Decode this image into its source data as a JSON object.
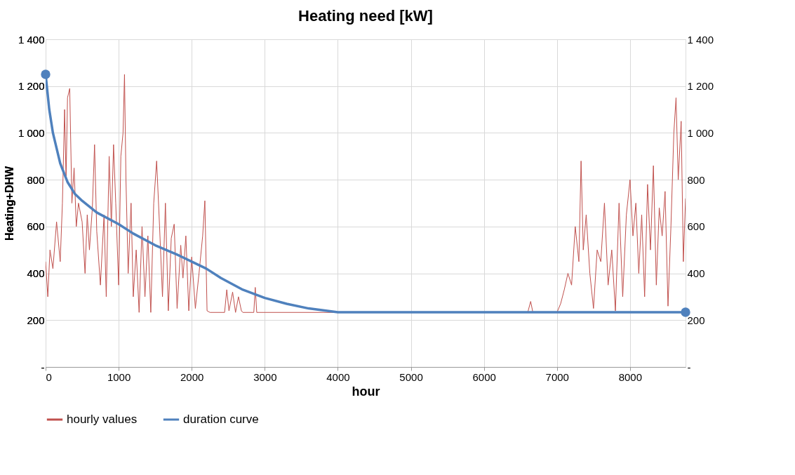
{
  "chart_data": {
    "type": "line",
    "title": "Heating need [kW]",
    "xlabel": "hour",
    "ylabel": "Heating+DHW",
    "xlim": [
      0,
      8760
    ],
    "xticks": [
      0,
      1000,
      2000,
      3000,
      4000,
      5000,
      6000,
      7000,
      8000
    ],
    "ylim": [
      0,
      1400
    ],
    "yticks": [
      {
        "value": 0,
        "label": "-"
      },
      {
        "value": 200,
        "label": "200"
      },
      {
        "value": 400,
        "label": "400"
      },
      {
        "value": 600,
        "label": "600"
      },
      {
        "value": 800,
        "label": "800"
      },
      {
        "value": 1000,
        "label": "1 000"
      },
      {
        "value": 1200,
        "label": "1 200"
      },
      {
        "value": 1400,
        "label": "1 400"
      }
    ],
    "y2lim": [
      0,
      1400
    ],
    "y2ticks": [
      {
        "value": 0,
        "label": "-"
      },
      {
        "value": 200,
        "label": "200"
      },
      {
        "value": 400,
        "label": "400"
      },
      {
        "value": 600,
        "label": "600"
      },
      {
        "value": 800,
        "label": "800"
      },
      {
        "value": 1000,
        "label": "1 000"
      },
      {
        "value": 1200,
        "label": "1 200"
      },
      {
        "value": 1400,
        "label": "1 400"
      }
    ],
    "grid": true,
    "legend": "bottom",
    "series": [
      {
        "name": "hourly values",
        "color": "#c0504d",
        "marker": "none",
        "x": [
          0,
          30,
          60,
          100,
          150,
          200,
          230,
          260,
          280,
          300,
          330,
          360,
          390,
          420,
          450,
          500,
          540,
          570,
          600,
          640,
          670,
          700,
          750,
          800,
          830,
          870,
          900,
          930,
          960,
          1000,
          1030,
          1060,
          1080,
          1100,
          1130,
          1170,
          1200,
          1240,
          1280,
          1320,
          1360,
          1400,
          1440,
          1480,
          1520,
          1560,
          1600,
          1640,
          1680,
          1720,
          1760,
          1800,
          1850,
          1880,
          1920,
          1960,
          2000,
          2050,
          2100,
          2150,
          2180,
          2210,
          2250,
          2450,
          2480,
          2510,
          2560,
          2600,
          2640,
          2680,
          2700,
          2850,
          2870,
          2890,
          6600,
          6640,
          6670,
          7000,
          7050,
          7100,
          7150,
          7200,
          7250,
          7300,
          7330,
          7360,
          7400,
          7450,
          7500,
          7550,
          7600,
          7650,
          7700,
          7750,
          7800,
          7850,
          7900,
          7950,
          8000,
          8040,
          8080,
          8120,
          8160,
          8200,
          8240,
          8280,
          8320,
          8360,
          8400,
          8440,
          8480,
          8520,
          8560,
          8600,
          8630,
          8660,
          8700,
          8730,
          8760
        ],
        "values": [
          450,
          300,
          500,
          420,
          620,
          450,
          700,
          1100,
          800,
          1150,
          1190,
          700,
          850,
          600,
          700,
          620,
          400,
          650,
          500,
          680,
          950,
          580,
          350,
          650,
          300,
          900,
          600,
          950,
          700,
          350,
          900,
          1000,
          1250,
          800,
          400,
          700,
          300,
          500,
          233,
          600,
          300,
          560,
          233,
          700,
          880,
          600,
          300,
          700,
          240,
          550,
          610,
          250,
          520,
          380,
          560,
          240,
          470,
          250,
          400,
          560,
          710,
          240,
          233,
          233,
          330,
          240,
          320,
          233,
          300,
          240,
          233,
          233,
          340,
          233,
          233,
          280,
          233,
          233,
          270,
          330,
          400,
          350,
          600,
          450,
          880,
          500,
          650,
          400,
          250,
          500,
          450,
          700,
          350,
          500,
          240,
          700,
          300,
          650,
          800,
          560,
          700,
          400,
          650,
          300,
          780,
          500,
          860,
          350,
          680,
          560,
          750,
          260,
          600,
          1000,
          1150,
          800,
          1050,
          450,
          720
        ]
      },
      {
        "name": "duration curve",
        "color": "#4f81bd",
        "marker": "none",
        "x": [
          0,
          50,
          100,
          200,
          300,
          400,
          500,
          700,
          1000,
          1200,
          1500,
          1800,
          2000,
          2200,
          2400,
          2700,
          3000,
          3300,
          3600,
          4000,
          8760
        ],
        "values": [
          1250,
          1100,
          1000,
          870,
          790,
          740,
          710,
          660,
          610,
          570,
          520,
          480,
          450,
          420,
          380,
          330,
          295,
          270,
          250,
          234,
          234
        ]
      },
      {
        "type": "scatter",
        "color": "#4f81bd",
        "marker": "circle",
        "axis": "y2",
        "x": [
          0,
          8760
        ],
        "values": [
          1250,
          234
        ]
      }
    ]
  }
}
